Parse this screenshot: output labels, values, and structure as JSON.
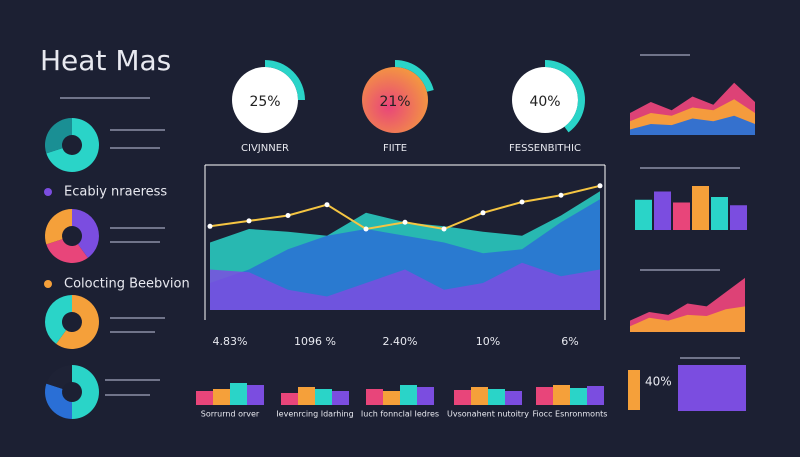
{
  "title": "Heat Mas",
  "gauges": [
    {
      "value": 25,
      "label": "25%",
      "caption": "CIVJNNER",
      "fill": "#ffffff"
    },
    {
      "value": 21,
      "label": "21%",
      "caption": "FIITE",
      "fill": "#f4713d"
    },
    {
      "value": 40,
      "label": "40%",
      "caption": "FESSENBITHIC",
      "fill": "#ffffff"
    }
  ],
  "sections": [
    "Ecabiy nraeress",
    "Colocting Beebvion"
  ],
  "pies": [
    {
      "values": [
        70,
        30
      ],
      "colors": [
        "#2ad4c8",
        "#1a8f94"
      ]
    },
    {
      "values": [
        40,
        30,
        30
      ],
      "colors": [
        "#7b4de0",
        "#e8457a",
        "#f5a03a"
      ]
    },
    {
      "values": [
        60,
        40
      ],
      "colors": [
        "#f5a03a",
        "#2ad4c8"
      ]
    },
    {
      "values": [
        50,
        30,
        20
      ],
      "colors": [
        "#2ad4c8",
        "#2a6fd6",
        "#1e2235"
      ]
    }
  ],
  "main_chart": {
    "type": "area",
    "ylim": [
      0,
      100
    ],
    "series": [
      {
        "color": "#2ad4c8",
        "values": [
          50,
          60,
          58,
          55,
          72,
          65,
          62,
          58,
          55,
          70,
          88
        ]
      },
      {
        "color": "#2a6fd6",
        "values": [
          20,
          30,
          45,
          55,
          60,
          55,
          50,
          42,
          45,
          65,
          82
        ]
      },
      {
        "color": "#7b4de0",
        "values": [
          30,
          28,
          15,
          10,
          20,
          30,
          15,
          20,
          35,
          25,
          30
        ]
      }
    ],
    "line": {
      "color": "#f5c542",
      "values": [
        62,
        66,
        70,
        78,
        60,
        65,
        60,
        72,
        80,
        85,
        92
      ]
    }
  },
  "stats": [
    {
      "label": "4.83%",
      "caption": "Sorrurnd orver",
      "bars": [
        14,
        16,
        22,
        20
      ]
    },
    {
      "label": "1096 %",
      "caption": "Ievenrcing Idarhing",
      "bars": [
        12,
        18,
        16,
        14
      ]
    },
    {
      "label": "2.40%",
      "caption": "Iuch fonnclal Iedres",
      "bars": [
        16,
        14,
        20,
        18
      ]
    },
    {
      "label": "10%",
      "caption": "Uvsonahent nutoitry",
      "bars": [
        15,
        18,
        16,
        14
      ]
    },
    {
      "label": "6%",
      "caption": "Fiocc Esnronmonts",
      "bars": [
        18,
        20,
        17,
        19
      ]
    }
  ],
  "bar_colors": [
    "#e8457a",
    "#f5a03a",
    "#2ad4c8",
    "#7b4de0"
  ],
  "right_area_top": {
    "ylim": [
      0,
      100
    ],
    "series": [
      {
        "color": "#e8457a",
        "values": [
          40,
          60,
          45,
          70,
          55,
          95,
          60
        ]
      },
      {
        "color": "#f5a03a",
        "values": [
          25,
          40,
          35,
          50,
          45,
          65,
          40
        ]
      },
      {
        "color": "#2a6fd6",
        "values": [
          10,
          20,
          18,
          30,
          25,
          35,
          20
        ]
      }
    ]
  },
  "right_bars": {
    "ylim": [
      0,
      100
    ],
    "values": [
      55,
      70,
      50,
      80,
      60,
      45
    ],
    "colors": [
      "#2ad4c8",
      "#7b4de0",
      "#e8457a",
      "#f5a03a",
      "#2ad4c8",
      "#7b4de0"
    ]
  },
  "right_area_bottom": {
    "ylim": [
      0,
      100
    ],
    "series": [
      {
        "color": "#e8457a",
        "values": [
          20,
          35,
          30,
          50,
          45,
          70,
          95
        ]
      },
      {
        "color": "#f5a03a",
        "values": [
          10,
          25,
          20,
          30,
          28,
          40,
          45
        ]
      }
    ]
  },
  "box": {
    "label": "40%"
  }
}
